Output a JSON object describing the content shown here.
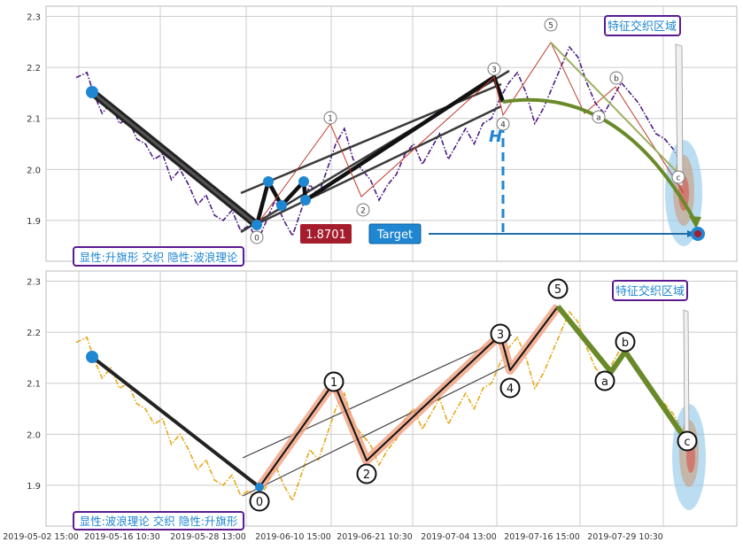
{
  "chart_data": [
    {
      "type": "line",
      "panel": "top",
      "ylim": [
        1.82,
        2.32
      ],
      "yticks": [
        1.9,
        2.0,
        2.1,
        2.2,
        2.3
      ],
      "grid": true,
      "series": [
        {
          "kind": "price",
          "color": "#4b1a85",
          "style": "dash-dot",
          "points": [
            [
              0,
              2.18
            ],
            [
              0.5,
              2.19
            ],
            [
              0.8,
              2.15
            ],
            [
              1.2,
              2.11
            ],
            [
              1.6,
              2.13
            ],
            [
              2.0,
              2.09
            ],
            [
              2.4,
              2.1
            ],
            [
              2.8,
              2.06
            ],
            [
              3.2,
              2.05
            ],
            [
              3.6,
              2.02
            ],
            [
              4.0,
              2.03
            ],
            [
              4.4,
              1.98
            ],
            [
              4.8,
              2.0
            ],
            [
              5.2,
              1.97
            ],
            [
              5.6,
              1.93
            ],
            [
              6.0,
              1.95
            ],
            [
              6.4,
              1.91
            ],
            [
              6.8,
              1.9
            ],
            [
              7.2,
              1.92
            ],
            [
              7.6,
              1.88
            ],
            [
              8.0,
              1.89
            ],
            [
              8.4,
              1.86
            ],
            [
              8.8,
              1.9
            ],
            [
              9.2,
              1.94
            ],
            [
              9.6,
              1.9
            ],
            [
              10.0,
              1.87
            ],
            [
              10.4,
              1.92
            ],
            [
              10.8,
              1.97
            ],
            [
              11.2,
              1.95
            ],
            [
              11.6,
              2.0
            ],
            [
              12.0,
              2.05
            ],
            [
              12.4,
              2.08
            ],
            [
              12.8,
              2.02
            ],
            [
              13.2,
              2.0
            ],
            [
              13.6,
              1.98
            ],
            [
              14.0,
              1.94
            ],
            [
              14.4,
              1.97
            ],
            [
              14.8,
              1.99
            ],
            [
              15.2,
              2.03
            ],
            [
              15.6,
              2.05
            ],
            [
              16.0,
              2.01
            ],
            [
              16.4,
              2.04
            ],
            [
              16.8,
              2.07
            ],
            [
              17.2,
              2.02
            ],
            [
              17.6,
              2.05
            ],
            [
              18.0,
              2.08
            ],
            [
              18.4,
              2.05
            ],
            [
              18.8,
              2.09
            ],
            [
              19.2,
              2.1
            ],
            [
              19.6,
              2.14
            ],
            [
              20.0,
              2.17
            ],
            [
              20.4,
              2.19
            ],
            [
              20.8,
              2.15
            ],
            [
              21.2,
              2.09
            ],
            [
              21.6,
              2.12
            ],
            [
              22.0,
              2.16
            ],
            [
              22.4,
              2.2
            ],
            [
              22.8,
              2.24
            ],
            [
              23.2,
              2.22
            ],
            [
              23.6,
              2.17
            ],
            [
              24.0,
              2.13
            ],
            [
              24.4,
              2.11
            ],
            [
              24.8,
              2.14
            ],
            [
              25.2,
              2.17
            ],
            [
              25.6,
              2.15
            ],
            [
              26.0,
              2.13
            ],
            [
              26.4,
              2.1
            ],
            [
              26.8,
              2.07
            ],
            [
              27.2,
              2.06
            ],
            [
              27.6,
              2.04
            ],
            [
              28.0,
              2.01
            ]
          ]
        }
      ],
      "wave_labels": [
        "0",
        "1",
        "2",
        "3",
        "4",
        "5",
        "b",
        "a",
        "c"
      ],
      "labels": {
        "pattern_text": "显性:升旗形 交织 隐性:波浪理论",
        "zone_text": "特征交织区域",
        "price_tag": "1.8701",
        "target_label": "Target",
        "h_label": "H"
      },
      "colors": {
        "price_tag_bg": "#a51d2d",
        "target_bg": "#1f86d1",
        "zone_border": "#5b1a8f",
        "zone_text": "#1f86d1",
        "h_color": "#1f86d1",
        "curve_color": "#6a8a2a"
      }
    },
    {
      "type": "line",
      "panel": "bottom",
      "ylim": [
        1.82,
        2.32
      ],
      "yticks": [
        1.9,
        2.0,
        2.1,
        2.2,
        2.3
      ],
      "grid": true,
      "series": [
        {
          "kind": "price",
          "color": "#e6a817",
          "style": "dash-dot",
          "points": [
            [
              0,
              2.18
            ],
            [
              0.5,
              2.19
            ],
            [
              0.8,
              2.15
            ],
            [
              1.2,
              2.11
            ],
            [
              1.6,
              2.13
            ],
            [
              2.0,
              2.09
            ],
            [
              2.4,
              2.1
            ],
            [
              2.8,
              2.06
            ],
            [
              3.2,
              2.05
            ],
            [
              3.6,
              2.02
            ],
            [
              4.0,
              2.03
            ],
            [
              4.4,
              1.98
            ],
            [
              4.8,
              2.0
            ],
            [
              5.2,
              1.97
            ],
            [
              5.6,
              1.93
            ],
            [
              6.0,
              1.95
            ],
            [
              6.4,
              1.91
            ],
            [
              6.8,
              1.9
            ],
            [
              7.2,
              1.92
            ],
            [
              7.6,
              1.88
            ],
            [
              8.0,
              1.89
            ],
            [
              8.4,
              1.86
            ],
            [
              8.8,
              1.9
            ],
            [
              9.2,
              1.94
            ],
            [
              9.6,
              1.9
            ],
            [
              10.0,
              1.87
            ],
            [
              10.4,
              1.92
            ],
            [
              10.8,
              1.97
            ],
            [
              11.2,
              1.95
            ],
            [
              11.6,
              2.0
            ],
            [
              12.0,
              2.05
            ],
            [
              12.4,
              2.08
            ],
            [
              12.8,
              2.02
            ],
            [
              13.2,
              2.0
            ],
            [
              13.6,
              1.98
            ],
            [
              14.0,
              1.94
            ],
            [
              14.4,
              1.97
            ],
            [
              14.8,
              1.99
            ],
            [
              15.2,
              2.03
            ],
            [
              15.6,
              2.05
            ],
            [
              16.0,
              2.01
            ],
            [
              16.4,
              2.04
            ],
            [
              16.8,
              2.07
            ],
            [
              17.2,
              2.02
            ],
            [
              17.6,
              2.05
            ],
            [
              18.0,
              2.08
            ],
            [
              18.4,
              2.05
            ],
            [
              18.8,
              2.09
            ],
            [
              19.2,
              2.1
            ],
            [
              19.6,
              2.14
            ],
            [
              20.0,
              2.17
            ],
            [
              20.4,
              2.19
            ],
            [
              20.8,
              2.15
            ],
            [
              21.2,
              2.09
            ],
            [
              21.6,
              2.12
            ],
            [
              22.0,
              2.16
            ],
            [
              22.4,
              2.2
            ],
            [
              22.8,
              2.24
            ],
            [
              23.2,
              2.22
            ],
            [
              23.6,
              2.17
            ],
            [
              24.0,
              2.13
            ],
            [
              24.4,
              2.11
            ],
            [
              24.8,
              2.14
            ],
            [
              25.2,
              2.17
            ],
            [
              25.6,
              2.15
            ],
            [
              26.0,
              2.13
            ],
            [
              26.4,
              2.1
            ],
            [
              26.8,
              2.07
            ],
            [
              27.2,
              2.06
            ],
            [
              27.6,
              2.04
            ],
            [
              28.0,
              2.01
            ]
          ]
        }
      ],
      "wave_labels": [
        "0",
        "1",
        "2",
        "3",
        "4",
        "5",
        "a",
        "b",
        "c"
      ],
      "labels": {
        "pattern_text": "显性:波浪理论 交织 隐性:升旗形",
        "zone_text": "特征交织区域"
      },
      "colors": {
        "zone_border": "#5b1a8f",
        "zone_text": "#1f86d1",
        "wave_fill": "#f0a080",
        "corrective": "#6a8a2a"
      }
    }
  ],
  "x_tick_labels": [
    "2019-05-02 15:00",
    "2019-05-16 10:30",
    "2019-05-28 13:00",
    "2019-06-10 15:00",
    "2019-06-21 10:30",
    "2019-07-04 13:00",
    "2019-07-16 15:00",
    "2019-07-29 10:30"
  ]
}
